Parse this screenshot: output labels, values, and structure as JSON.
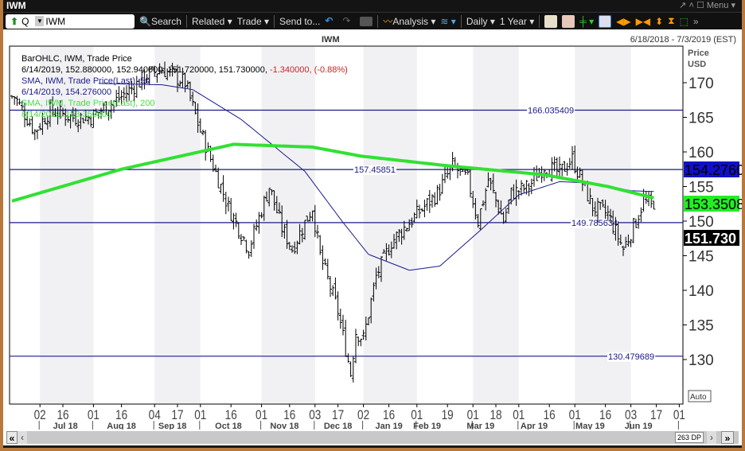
{
  "window": {
    "title": "IWM",
    "menu_label": "Menu"
  },
  "toolbar": {
    "symbol_type": "Q",
    "symbol": "IWM",
    "search": "Search",
    "related": "Related",
    "trade": "Trade",
    "send_to": "Send to...",
    "analysis": "Analysis",
    "period": "Daily",
    "range": "1 Year"
  },
  "chart_header": {
    "title": "IWM",
    "date_range": "6/18/2018 - 7/3/2019 (EST)",
    "axis_title_1": "Price",
    "axis_title_2": "USD",
    "auto_label": "Auto"
  },
  "legend": {
    "bar_title": "BarOHLC, IWM, Trade Price",
    "bar_values": "6/14/2019, 152.880000, 152.940000, 151.720000, 151.730000,",
    "bar_change": "-1.340000, (-0.88%)",
    "sma50_title": "SMA, IWM, Trade Price(Last),  50",
    "sma50_value": "6/14/2019, 154.276000",
    "sma200_title": "SMA, IWM, Trade Price(Last),  200",
    "sma200_value": "6/14/2019, 153.350800"
  },
  "price_tags": {
    "sma50": "154.2760",
    "sma200": "153.3508",
    "last": "151.730"
  },
  "scrollbar": {
    "data_points": "263 DP"
  },
  "colors": {
    "sma50": "#1a1a8c",
    "sma200": "#33e033",
    "hline": "#1a1a8c",
    "down": "#cc2222"
  },
  "chart_data": {
    "type": "bar",
    "title": "IWM",
    "ylabel": "Price USD",
    "ylim": [
      125.5,
      175
    ],
    "y_ticks": [
      130,
      135,
      140,
      145,
      150,
      155,
      160,
      165,
      170
    ],
    "close_anchors": [
      [
        0,
        168
      ],
      [
        1,
        168
      ],
      [
        9,
        163
      ],
      [
        15,
        166
      ],
      [
        24,
        165
      ],
      [
        31,
        165
      ],
      [
        43,
        168
      ],
      [
        53,
        171
      ],
      [
        59,
        172
      ],
      [
        68,
        170
      ],
      [
        74,
        163
      ],
      [
        81,
        156
      ],
      [
        85,
        152
      ],
      [
        93,
        146
      ],
      [
        101,
        155
      ],
      [
        106,
        149
      ],
      [
        110,
        146
      ],
      [
        118,
        152
      ],
      [
        121,
        145
      ],
      [
        128,
        137
      ],
      [
        133,
        128
      ],
      [
        135,
        134
      ],
      [
        138,
        133
      ],
      [
        143,
        142
      ],
      [
        149,
        147
      ],
      [
        159,
        151
      ],
      [
        167,
        154
      ],
      [
        173,
        158
      ],
      [
        179,
        156
      ],
      [
        183,
        150
      ],
      [
        187,
        156
      ],
      [
        193,
        150
      ],
      [
        196,
        154
      ],
      [
        203,
        155
      ],
      [
        209,
        158
      ],
      [
        215,
        157
      ],
      [
        220,
        159
      ],
      [
        228,
        152
      ],
      [
        234,
        151
      ],
      [
        240,
        146
      ],
      [
        245,
        150
      ],
      [
        248,
        153
      ],
      [
        252,
        151.73
      ]
    ],
    "sma50_anchors": [
      [
        34,
        169.9
      ],
      [
        59,
        169.7
      ],
      [
        71,
        169
      ],
      [
        90,
        164.7
      ],
      [
        115,
        157.2
      ],
      [
        130,
        149.8
      ],
      [
        140,
        145.2
      ],
      [
        156,
        142.9
      ],
      [
        168,
        143.5
      ],
      [
        184,
        148.7
      ],
      [
        199,
        153.8
      ],
      [
        215,
        155.7
      ],
      [
        228,
        155.5
      ],
      [
        243,
        154.4
      ],
      [
        252,
        154.276
      ]
    ],
    "sma200_anchors": [
      [
        0,
        152.9
      ],
      [
        43,
        157.5
      ],
      [
        87,
        161.1
      ],
      [
        118,
        160.7
      ],
      [
        137,
        159.4
      ],
      [
        171,
        158
      ],
      [
        209,
        156.7
      ],
      [
        234,
        155
      ],
      [
        252,
        153.3508
      ]
    ],
    "hlines": [
      {
        "value": 166.035409,
        "label": "166.035409"
      },
      {
        "value": 157.45851,
        "label": "157.45851"
      },
      {
        "value": 149.785634,
        "label": "149.785634"
      },
      {
        "value": 130.479689,
        "label": "130.479689"
      }
    ],
    "x_ticks": [
      [
        "02",
        11
      ],
      [
        "16",
        20
      ],
      [
        "01",
        32
      ],
      [
        "16",
        43
      ],
      [
        "04",
        56
      ],
      [
        "17",
        65
      ],
      [
        "01",
        74
      ],
      [
        "16",
        86
      ],
      [
        "01",
        98
      ],
      [
        "16",
        109
      ],
      [
        "03",
        119
      ],
      [
        "17",
        128
      ],
      [
        "02",
        138
      ],
      [
        "16",
        148
      ],
      [
        "01",
        159
      ],
      [
        "19",
        171
      ],
      [
        "01",
        181
      ],
      [
        "18",
        190
      ],
      [
        "01",
        199
      ],
      [
        "16",
        211
      ],
      [
        "01",
        221
      ],
      [
        "16",
        233
      ],
      [
        "03",
        243
      ],
      [
        "17",
        253
      ],
      [
        "01",
        262
      ]
    ],
    "months": [
      [
        "Jul 18",
        21
      ],
      [
        "Aug 18",
        43
      ],
      [
        "Sep 18",
        63
      ],
      [
        "Oct 18",
        85
      ],
      [
        "Nov 18",
        107
      ],
      [
        "Dec 18",
        128
      ],
      [
        "Jan 19",
        148
      ],
      [
        "Feb 19",
        163
      ],
      [
        "Mar 19",
        184
      ],
      [
        "Apr 19",
        205
      ],
      [
        "May 19",
        227
      ],
      [
        "Jun 19",
        246
      ]
    ],
    "month_starts": [
      11,
      32,
      56,
      74,
      98,
      119,
      138,
      159,
      181,
      199,
      221,
      243,
      262
    ]
  }
}
